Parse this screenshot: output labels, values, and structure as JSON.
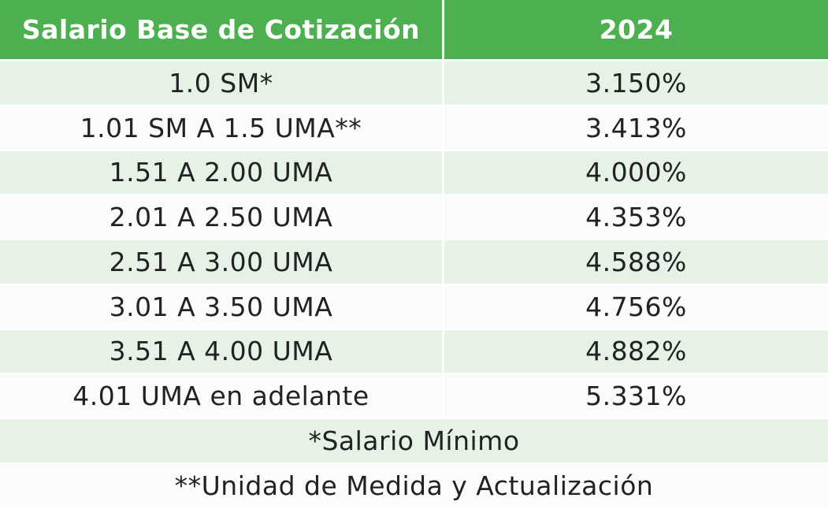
{
  "table": {
    "headers": [
      "Salario Base de Cotización",
      "2024"
    ],
    "rows": [
      [
        "1.0 SM*",
        "3.150%"
      ],
      [
        "1.01 SM A 1.5 UMA**",
        "3.413%"
      ],
      [
        "1.51 A 2.00 UMA",
        "4.000%"
      ],
      [
        "2.01 A 2.50 UMA",
        "4.353%"
      ],
      [
        "2.51 A 3.00 UMA",
        "4.588%"
      ],
      [
        "3.01 A 3.50 UMA",
        "4.756%"
      ],
      [
        "3.51 A 4.00 UMA",
        "4.882%"
      ],
      [
        "4.01 UMA en adelante",
        "5.331%"
      ]
    ],
    "footnotes": [
      "*Salario Mínimo",
      "**Unidad de Medida y Actualización"
    ]
  },
  "colors": {
    "header_bg": "#4caf50",
    "row_band": "#e5f2e5",
    "row_alt": "#f9fcf9",
    "text": "#222222"
  }
}
